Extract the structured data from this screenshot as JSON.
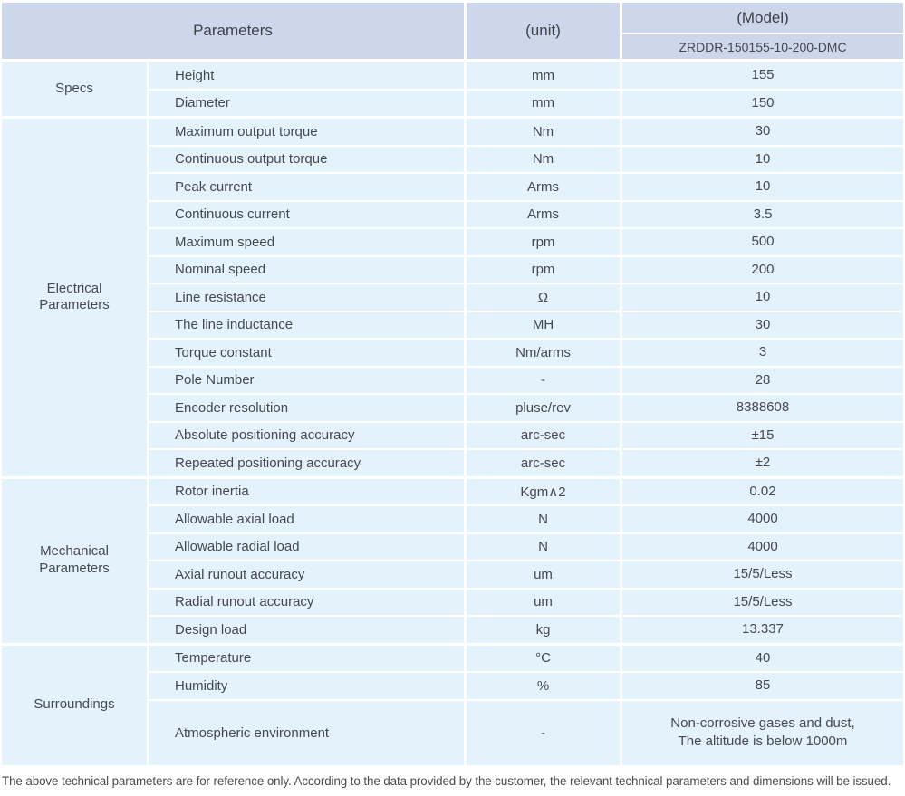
{
  "colors": {
    "header_bg": "#ccd7eb",
    "row_bg": "#e4f3fb",
    "text": "#45494e"
  },
  "header": {
    "parameters_label": "Parameters",
    "unit_label": "(unit)",
    "model_label": "(Model)",
    "model_value": "ZRDDR-150155-10-200-DMC"
  },
  "sections": [
    {
      "category": "Specs",
      "rows": [
        {
          "param": "Height",
          "unit": "mm",
          "value": "155"
        },
        {
          "param": "Diameter",
          "unit": "mm",
          "value": "150"
        }
      ]
    },
    {
      "category": "Electrical\nParameters",
      "rows": [
        {
          "param": "Maximum output torque",
          "unit": "Nm",
          "value": "30"
        },
        {
          "param": "Continuous output torque",
          "unit": "Nm",
          "value": "10"
        },
        {
          "param": "Peak current",
          "unit": "Arms",
          "value": "10"
        },
        {
          "param": "Continuous current",
          "unit": "Arms",
          "value": "3.5"
        },
        {
          "param": "Maximum speed",
          "unit": "rpm",
          "value": "500"
        },
        {
          "param": "Nominal speed",
          "unit": "rpm",
          "value": "200"
        },
        {
          "param": "Line resistance",
          "unit": "Ω",
          "value": "10"
        },
        {
          "param": "The line inductance",
          "unit": "MH",
          "value": "30"
        },
        {
          "param": "Torque constant",
          "unit": "Nm/arms",
          "value": "3"
        },
        {
          "param": "Pole Number",
          "unit": "-",
          "value": "28"
        },
        {
          "param": "Encoder resolution",
          "unit": "pluse/rev",
          "value": "8388608"
        },
        {
          "param": "Absolute positioning accuracy",
          "unit": "arc-sec",
          "value": "±15"
        },
        {
          "param": "Repeated positioning accuracy",
          "unit": "arc-sec",
          "value": "±2"
        }
      ]
    },
    {
      "category": "Mechanical\nParameters",
      "rows": [
        {
          "param": "Rotor inertia",
          "unit": "Kgm∧2",
          "value": "0.02"
        },
        {
          "param": "Allowable axial load",
          "unit": "N",
          "value": "4000"
        },
        {
          "param": "Allowable radial load",
          "unit": "N",
          "value": "4000"
        },
        {
          "param": "Axial runout accuracy",
          "unit": "um",
          "value": "15/5/Less"
        },
        {
          "param": "Radial runout accuracy",
          "unit": "um",
          "value": "15/5/Less"
        },
        {
          "param": "Design load",
          "unit": "kg",
          "value": "13.337"
        }
      ]
    },
    {
      "category": "Surroundings",
      "rows": [
        {
          "param": "Temperature",
          "unit": "°C",
          "value": "40"
        },
        {
          "param": "Humidity",
          "unit": "%",
          "value": "85"
        },
        {
          "param": "Atmospheric environment",
          "unit": "-",
          "value": "Non-corrosive gases and dust,\nThe altitude is below 1000m"
        }
      ]
    }
  ],
  "footnote": "The above technical parameters are for reference only. According to the data provided by the customer, the relevant technical parameters and dimensions will be issued."
}
